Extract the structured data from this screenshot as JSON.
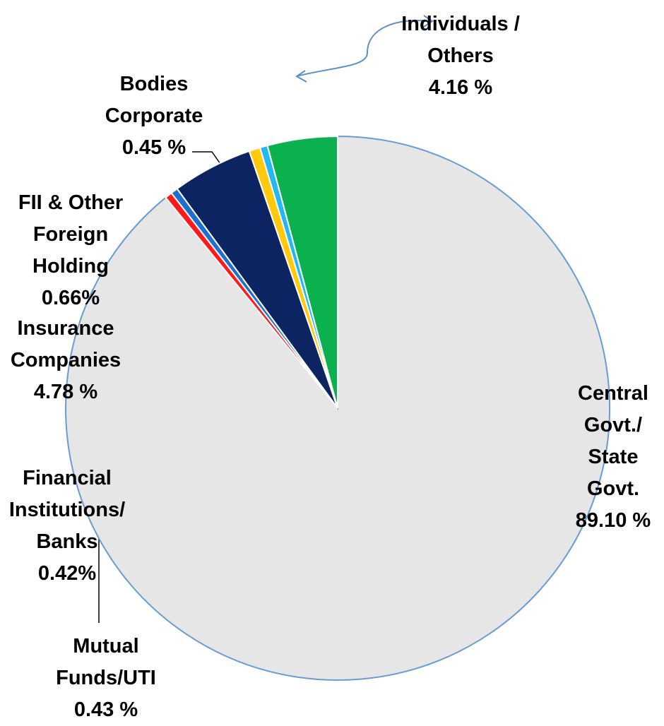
{
  "chart_data": {
    "type": "pie",
    "categories": [
      "Central Govt./ State Govt.",
      "Mutual Funds/UTI",
      "Financial Institutions/ Banks",
      "Insurance Companies",
      "FII & Other Foreign Holding",
      "Bodies Corporate",
      "Individuals / Others"
    ],
    "values": [
      89.1,
      0.43,
      0.42,
      4.78,
      0.66,
      0.45,
      4.16
    ],
    "value_labels": [
      "89.10 %",
      "0.43 %",
      "0.42%",
      "4.78  %",
      "0.66%",
      "0.45 %",
      "4.16 %"
    ],
    "colors": [
      "#e6e6e6",
      "#ff1a1a",
      "#1f6fd0",
      "#0d2462",
      "#ffc90e",
      "#22b9f0",
      "#0bb14f"
    ]
  }
}
